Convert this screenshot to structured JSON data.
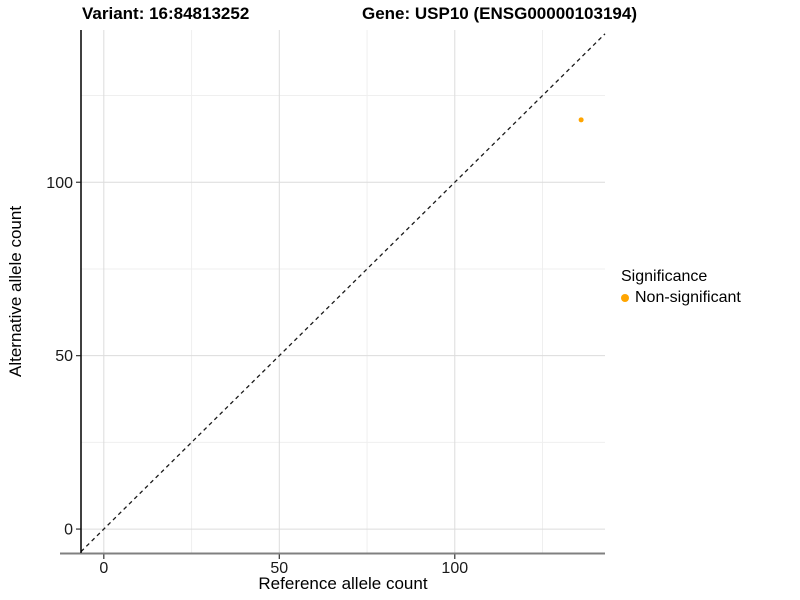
{
  "chart_data": {
    "type": "scatter",
    "title_left": "Variant: 16:84813252",
    "title_right": "Gene: USP10 (ENSG00000103194)",
    "xlabel": "Reference allele count",
    "ylabel": "Alternative allele count",
    "xlim": [
      -6.5,
      142.8
    ],
    "ylim": [
      -6.9,
      143.9
    ],
    "xticks": [
      0,
      50,
      100
    ],
    "yticks": [
      0,
      50,
      100
    ],
    "x_minor_gridlines": [
      25,
      75,
      125
    ],
    "y_minor_gridlines": [
      25,
      75,
      125
    ],
    "grid": true,
    "identity_line": {
      "type": "dashed",
      "equation": "y = x",
      "color": "#1A1A1A"
    },
    "series": [
      {
        "name": "Non-significant",
        "color": "#FFA500",
        "points": [
          {
            "x": 136,
            "y": 118
          }
        ]
      }
    ],
    "legend": {
      "position": "right",
      "title": "Significance",
      "entries": [
        {
          "label": "Non-significant",
          "color": "#FFA500"
        }
      ]
    }
  },
  "colors": {
    "point": "#FFA500",
    "major_grid": "#DCDCDC",
    "minor_grid": "#EFEFEF",
    "x_axis_line": "#808080",
    "y_axis_line": "#000000",
    "tick": "#333333",
    "text": "#1A1A1A"
  }
}
